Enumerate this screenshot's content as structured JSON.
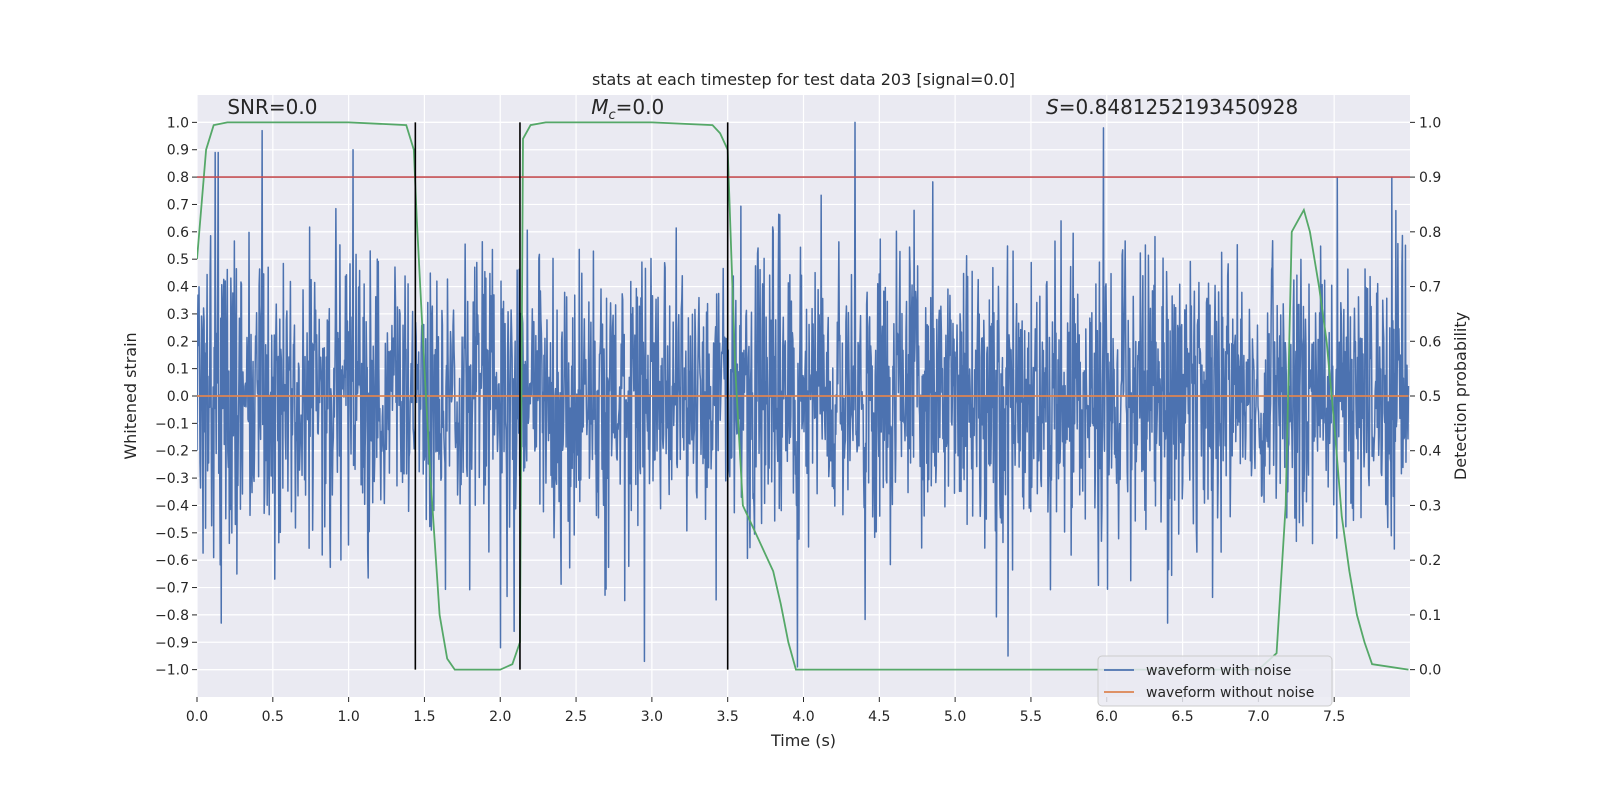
{
  "chart_data": {
    "type": "line",
    "title": "stats at each timestep for test data 203 [signal=0.0]",
    "xlabel": "Time (s)",
    "ylabel_left": "Whitened strain",
    "ylabel_right": "Detection probability",
    "xlim": [
      0.0,
      8.0
    ],
    "ylim_left": [
      -1.1,
      1.1
    ],
    "ylim_right": [
      -0.05,
      1.05
    ],
    "x_ticks": [
      0.0,
      0.5,
      1.0,
      1.5,
      2.0,
      2.5,
      3.0,
      3.5,
      4.0,
      4.5,
      5.0,
      5.5,
      6.0,
      6.5,
      7.0,
      7.5
    ],
    "x_tick_labels": [
      "0.0",
      "0.5",
      "1.0",
      "1.5",
      "2.0",
      "2.5",
      "3.0",
      "3.5",
      "4.0",
      "4.5",
      "5.0",
      "5.5",
      "6.0",
      "6.5",
      "7.0",
      "7.5"
    ],
    "y_left_ticks": [
      1.0,
      0.9,
      0.8,
      0.7,
      0.6,
      0.5,
      0.4,
      0.3,
      0.2,
      0.1,
      0.0,
      -0.1,
      -0.2,
      -0.3,
      -0.4,
      -0.5,
      -0.6,
      -0.7,
      -0.8,
      -0.9,
      -1.0
    ],
    "y_left_tick_labels": [
      "1.0",
      "0.9",
      "0.8",
      "0.7",
      "0.6",
      "0.5",
      "0.4",
      "0.3",
      "0.2",
      "0.1",
      "0.0",
      "−0.1",
      "−0.2",
      "−0.3",
      "−0.4",
      "−0.5",
      "−0.6",
      "−0.7",
      "−0.8",
      "−0.9",
      "−1.0"
    ],
    "y_right_ticks": [
      1.0,
      0.9,
      0.8,
      0.7,
      0.6,
      0.5,
      0.4,
      0.3,
      0.2,
      0.1,
      0.0
    ],
    "y_right_tick_labels": [
      "1.0",
      "0.9",
      "0.8",
      "0.7",
      "0.6",
      "0.5",
      "0.4",
      "0.3",
      "0.2",
      "0.1",
      "0.0"
    ],
    "grid": true,
    "threshold_right": 0.9,
    "threshold_color": "#c44e52",
    "vertical_lines_x": [
      1.44,
      2.13,
      3.5
    ],
    "vertical_lines_ylim": [
      -1.0,
      1.0
    ],
    "annotations": [
      {
        "text_prefix": "SNR",
        "text_suffix": "=0.0",
        "x": 0.2,
        "y": 1.03
      },
      {
        "text_prefix": "M",
        "text_sub": "c",
        "text_suffix": "=0.0",
        "x": 2.6,
        "y": 1.03
      },
      {
        "text_prefix": "S",
        "text_suffix": "=0.8481252193450928",
        "x": 5.6,
        "y": 1.03
      }
    ],
    "series": [
      {
        "name": "waveform with noise",
        "color": "#4c72b0",
        "axis": "left",
        "kind": "noise",
        "x_range": [
          0.0,
          7.99
        ],
        "n_samples": 2400,
        "typical_amplitude": 0.42,
        "spikes": [
          {
            "x": 0.12,
            "y": 0.89
          },
          {
            "x": 0.14,
            "y": 0.89
          },
          {
            "x": 0.43,
            "y": 0.97
          },
          {
            "x": 1.03,
            "y": 0.9
          },
          {
            "x": 4.34,
            "y": 1.0
          },
          {
            "x": 5.98,
            "y": 0.98
          },
          {
            "x": 7.52,
            "y": 0.8
          },
          {
            "x": 7.88,
            "y": 0.8
          },
          {
            "x": 0.16,
            "y": -0.83
          },
          {
            "x": 2.0,
            "y": -0.92
          },
          {
            "x": 2.09,
            "y": -0.86
          },
          {
            "x": 2.95,
            "y": -0.97
          },
          {
            "x": 3.96,
            "y": -0.99
          },
          {
            "x": 5.35,
            "y": -0.95
          },
          {
            "x": 6.4,
            "y": -0.83
          }
        ]
      },
      {
        "name": "waveform without noise",
        "color": "#dd8452",
        "axis": "left",
        "kind": "line",
        "x": [
          0.0,
          7.99
        ],
        "y": [
          0.0,
          0.0
        ]
      },
      {
        "name": "detection probability",
        "color": "#55a868",
        "axis": "right",
        "kind": "line",
        "x": [
          0.0,
          0.06,
          0.11,
          0.2,
          0.5,
          1.0,
          1.38,
          1.43,
          1.45,
          1.5,
          1.54,
          1.6,
          1.65,
          1.7,
          2.0,
          2.08,
          2.13,
          2.15,
          2.2,
          2.3,
          3.0,
          3.4,
          3.45,
          3.5,
          3.55,
          3.6,
          3.7,
          3.75,
          3.8,
          3.85,
          3.9,
          3.95,
          4.5,
          5.0,
          6.0,
          6.5,
          7.0,
          7.12,
          7.18,
          7.22,
          7.26,
          7.3,
          7.34,
          7.4,
          7.45,
          7.5,
          7.55,
          7.6,
          7.65,
          7.7,
          7.75,
          7.99
        ],
        "y": [
          0.75,
          0.95,
          0.995,
          1.0,
          1.0,
          1.0,
          0.995,
          0.95,
          0.82,
          0.55,
          0.35,
          0.1,
          0.02,
          0.0,
          0.0,
          0.01,
          0.05,
          0.97,
          0.995,
          1.0,
          1.0,
          0.995,
          0.98,
          0.95,
          0.55,
          0.3,
          0.24,
          0.21,
          0.18,
          0.12,
          0.05,
          0.0,
          0.0,
          0.0,
          0.0,
          0.0,
          0.0,
          0.03,
          0.3,
          0.8,
          0.82,
          0.84,
          0.8,
          0.7,
          0.6,
          0.45,
          0.28,
          0.18,
          0.1,
          0.05,
          0.01,
          0.0
        ]
      }
    ],
    "legend": {
      "position": "bottom-right",
      "entries": [
        {
          "label": "waveform with noise",
          "color": "#4c72b0"
        },
        {
          "label": "waveform without noise",
          "color": "#dd8452"
        }
      ]
    },
    "colors": {
      "plot_bg": "#eaeaf2",
      "grid": "#ffffff",
      "text": "#262626"
    }
  }
}
